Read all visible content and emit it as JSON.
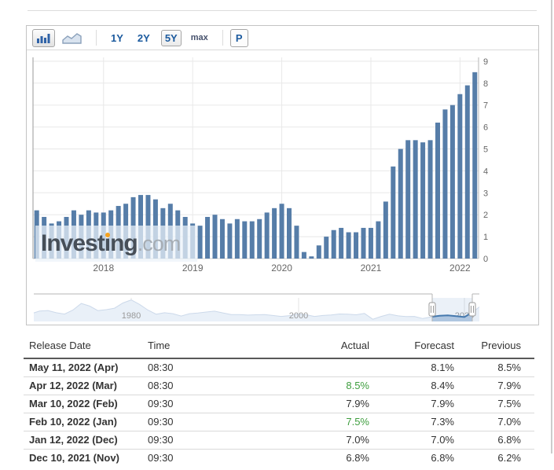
{
  "toolbar": {
    "chart_type_buttons": [
      {
        "name": "bar-chart",
        "selected": true
      },
      {
        "name": "area-chart",
        "selected": false
      }
    ],
    "range_buttons": [
      {
        "label": "1Y",
        "selected": false
      },
      {
        "label": "2Y",
        "selected": false
      },
      {
        "label": "5Y",
        "selected": true
      },
      {
        "label": "max",
        "selected": false
      }
    ],
    "settings_button_label": "P"
  },
  "watermark": {
    "text": "Investing",
    "suffix": ".com",
    "dot_color": "#f6a21e"
  },
  "chart_data": [
    {
      "type": "bar",
      "title": "",
      "x": [
        "Apr 2017",
        "May 2017",
        "Jun 2017",
        "Jul 2017",
        "Aug 2017",
        "Sep 2017",
        "Oct 2017",
        "Nov 2017",
        "Dec 2017",
        "Jan 2018",
        "Feb 2018",
        "Mar 2018",
        "Apr 2018",
        "May 2018",
        "Jun 2018",
        "Jul 2018",
        "Aug 2018",
        "Sep 2018",
        "Oct 2018",
        "Nov 2018",
        "Dec 2018",
        "Jan 2019",
        "Feb 2019",
        "Mar 2019",
        "Apr 2019",
        "May 2019",
        "Jun 2019",
        "Jul 2019",
        "Aug 2019",
        "Sep 2019",
        "Oct 2019",
        "Nov 2019",
        "Dec 2019",
        "Jan 2020",
        "Feb 2020",
        "Mar 2020",
        "Apr 2020",
        "May 2020",
        "Jun 2020",
        "Jul 2020",
        "Aug 2020",
        "Sep 2020",
        "Oct 2020",
        "Nov 2020",
        "Dec 2020",
        "Jan 2021",
        "Feb 2021",
        "Mar 2021",
        "Apr 2021",
        "May 2021",
        "Jun 2021",
        "Jul 2021",
        "Aug 2021",
        "Sep 2021",
        "Oct 2021",
        "Nov 2021",
        "Dec 2021",
        "Jan 2022",
        "Feb 2022",
        "Mar 2022"
      ],
      "values": [
        2.2,
        1.9,
        1.6,
        1.7,
        1.9,
        2.2,
        2.0,
        2.2,
        2.1,
        2.1,
        2.2,
        2.4,
        2.5,
        2.8,
        2.9,
        2.9,
        2.7,
        2.3,
        2.5,
        2.2,
        1.9,
        1.6,
        1.5,
        1.9,
        2.0,
        1.8,
        1.6,
        1.8,
        1.7,
        1.7,
        1.8,
        2.1,
        2.3,
        2.5,
        2.3,
        1.5,
        0.3,
        0.1,
        0.6,
        1.0,
        1.3,
        1.4,
        1.2,
        1.2,
        1.4,
        1.4,
        1.7,
        2.6,
        4.2,
        5.0,
        5.4,
        5.4,
        5.3,
        5.4,
        6.2,
        6.8,
        7.0,
        7.5,
        7.9,
        8.5
      ],
      "xlabel": "",
      "ylabel": "",
      "ylim": [
        0,
        9
      ],
      "yticks": [
        "0",
        "1",
        "2",
        "3",
        "4",
        "5",
        "6",
        "7",
        "8",
        "9"
      ],
      "year_ticks": [
        "2018",
        "2019",
        "2020",
        "2021",
        "2022"
      ],
      "grid": "on",
      "bar_color": "#567da8",
      "axis_label_color": "#666666",
      "gridline_color": "#e8e8e8"
    },
    {
      "type": "area",
      "title": "navigator",
      "x": [
        1968,
        1969,
        1970,
        1971,
        1972,
        1973,
        1974,
        1975,
        1976,
        1977,
        1978,
        1979,
        1980,
        1981,
        1982,
        1983,
        1984,
        1985,
        1986,
        1987,
        1988,
        1989,
        1990,
        1991,
        1992,
        1993,
        1994,
        1995,
        1996,
        1997,
        1998,
        1999,
        2000,
        2001,
        2002,
        2003,
        2004,
        2005,
        2006,
        2007,
        2008,
        2009,
        2010,
        2011,
        2012,
        2013,
        2014,
        2015,
        2016,
        2017,
        2018,
        2019,
        2020,
        2021,
        2022
      ],
      "values": [
        4.2,
        5.5,
        5.9,
        4.3,
        3.3,
        6.2,
        11.0,
        9.1,
        5.8,
        6.5,
        7.6,
        11.3,
        13.5,
        10.3,
        6.2,
        3.2,
        4.3,
        3.6,
        1.9,
        3.6,
        4.1,
        4.8,
        5.4,
        4.2,
        3.0,
        3.0,
        2.6,
        2.8,
        3.0,
        2.3,
        1.6,
        2.2,
        3.4,
        2.8,
        1.6,
        2.3,
        2.7,
        3.4,
        3.2,
        2.8,
        3.8,
        -0.4,
        1.6,
        3.2,
        2.1,
        1.5,
        1.6,
        0.1,
        1.3,
        2.1,
        2.4,
        1.8,
        1.2,
        4.7,
        8.5
      ],
      "xticks": [
        "1980",
        "2000",
        "2020"
      ],
      "ylim": [
        -2,
        15
      ],
      "selected_range": [
        "2017",
        "2022"
      ],
      "area_fill": "#e9f0f8",
      "area_line": "#ccd9ea",
      "selection_fill": "#b9cde3",
      "selection_line": "#3c72a8",
      "tick_label_color": "#999999"
    }
  ],
  "table": {
    "headers": [
      "Release Date",
      "Time",
      "Actual",
      "Forecast",
      "Previous"
    ],
    "rows": [
      {
        "release_date": "May 11, 2022 (Apr)",
        "time": "08:30",
        "actual": "",
        "forecast": "8.1%",
        "previous": "8.5%",
        "actual_color": "default"
      },
      {
        "release_date": "Apr 12, 2022 (Mar)",
        "time": "08:30",
        "actual": "8.5%",
        "forecast": "8.4%",
        "previous": "7.9%",
        "actual_color": "green"
      },
      {
        "release_date": "Mar 10, 2022 (Feb)",
        "time": "09:30",
        "actual": "7.9%",
        "forecast": "7.9%",
        "previous": "7.5%",
        "actual_color": "default"
      },
      {
        "release_date": "Feb 10, 2022 (Jan)",
        "time": "09:30",
        "actual": "7.5%",
        "forecast": "7.3%",
        "previous": "7.0%",
        "actual_color": "green"
      },
      {
        "release_date": "Jan 12, 2022 (Dec)",
        "time": "09:30",
        "actual": "7.0%",
        "forecast": "7.0%",
        "previous": "6.8%",
        "actual_color": "default"
      },
      {
        "release_date": "Dec 10, 2021 (Nov)",
        "time": "09:30",
        "actual": "6.8%",
        "forecast": "6.8%",
        "previous": "6.2%",
        "actual_color": "default"
      }
    ],
    "green_color": "#3f9e3f"
  }
}
